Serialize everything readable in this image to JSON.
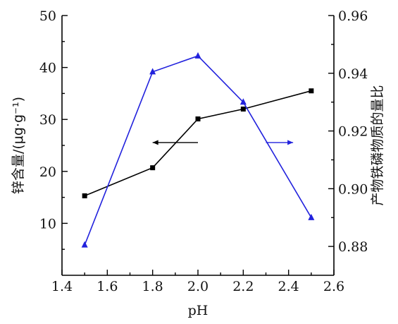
{
  "chart_data": {
    "type": "line",
    "xlabel": "pH",
    "ylabel_left": "锌含量/(μg·g⁻¹)",
    "ylabel_right": "产物铁磷物质的量比",
    "xlim": [
      1.4,
      2.6
    ],
    "xticks": [
      1.4,
      1.6,
      1.8,
      2.0,
      2.2,
      2.4,
      2.6
    ],
    "xtick_labels": [
      "1.4",
      "1.6",
      "1.8",
      "2.0",
      "2.2",
      "2.4",
      "2.6"
    ],
    "ylim_left": [
      0,
      50
    ],
    "yticks_left": [
      10,
      20,
      30,
      40,
      50
    ],
    "ytick_labels_left": [
      "10",
      "20",
      "30",
      "40",
      "50"
    ],
    "ylim_right": [
      0.87,
      0.96
    ],
    "yticks_right": [
      0.88,
      0.9,
      0.92,
      0.94,
      0.96
    ],
    "ytick_labels_right": [
      "0.88",
      "0.90",
      "0.92",
      "0.94",
      "0.96"
    ],
    "grid": false,
    "series": [
      {
        "axis": "left",
        "marker": "square",
        "color": "#000000",
        "x": [
          1.5,
          1.8,
          2.0,
          2.2,
          2.5
        ],
        "values": [
          15.3,
          20.7,
          30.1,
          32.0,
          35.5
        ]
      },
      {
        "axis": "right",
        "marker": "triangle",
        "color": "#2222dd",
        "x": [
          1.5,
          1.8,
          2.0,
          2.2,
          2.5
        ],
        "values": [
          0.8805,
          0.9405,
          0.946,
          0.93,
          0.89
        ]
      }
    ],
    "annotations": [
      {
        "kind": "arrow",
        "direction": "left",
        "x_from": 2.0,
        "x_to": 1.8,
        "y": 0.916,
        "color": "#000000"
      },
      {
        "kind": "arrow",
        "direction": "right",
        "x_from": 2.3,
        "x_to": 2.42,
        "y": 0.916,
        "color": "#2222dd"
      }
    ]
  }
}
